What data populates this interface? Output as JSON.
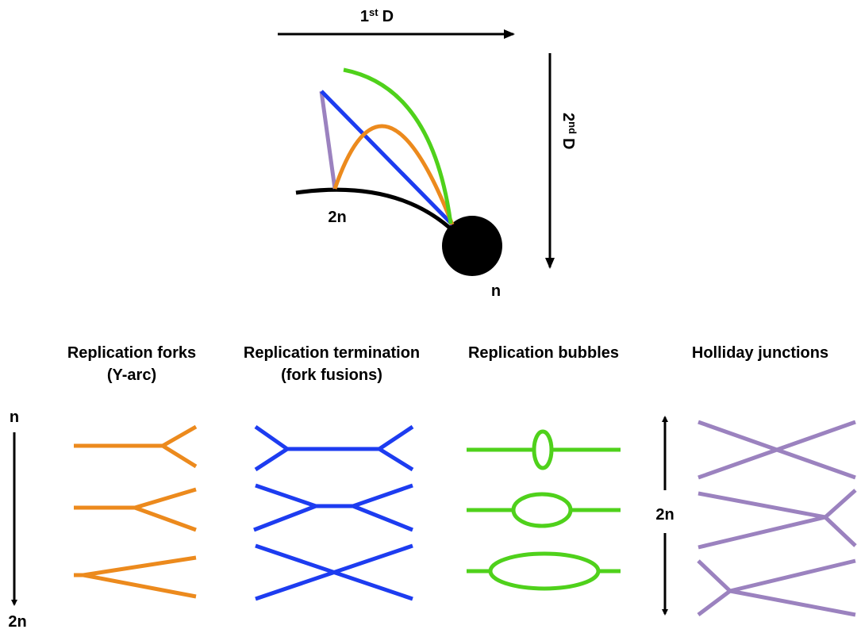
{
  "top_diagram": {
    "first_dimension": {
      "number": "1",
      "suffix": "st",
      "letter": "D"
    },
    "second_dimension": {
      "number": "2",
      "suffix": "nd",
      "letter": "D"
    },
    "arc_label": "2n",
    "spot_label": "n"
  },
  "columns": [
    {
      "title": "Replication forks",
      "subtitle": "(Y-arc)"
    },
    {
      "title": "Replication termination",
      "subtitle": "(fork fusions)"
    },
    {
      "title": "Replication bubbles"
    },
    {
      "title": "Holliday junctions"
    }
  ],
  "left_axis": {
    "start": "n",
    "end": "2n"
  },
  "right_axis": {
    "label": "2n"
  }
}
